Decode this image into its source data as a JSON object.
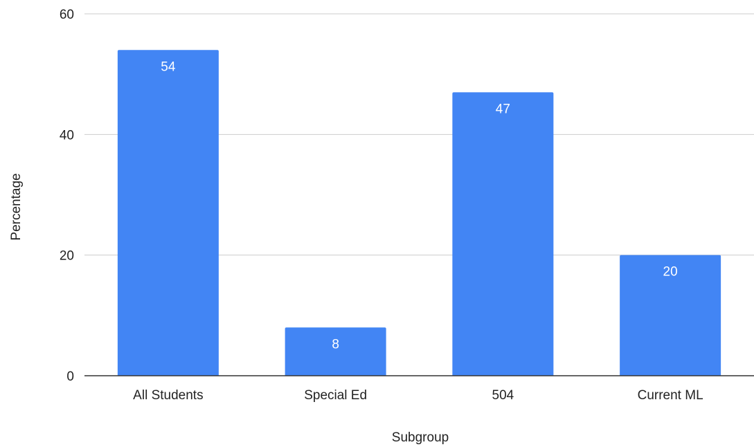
{
  "chart_data": {
    "type": "bar",
    "title": "",
    "xlabel": "Subgroup",
    "ylabel": "Percentage",
    "categories": [
      "All Students",
      "Special Ed",
      "504",
      "Current ML"
    ],
    "values": [
      54,
      8,
      47,
      20
    ],
    "data_labels": [
      "54",
      "8",
      "47",
      "20"
    ],
    "ylim": [
      0,
      60
    ],
    "yticks": [
      0,
      20,
      40,
      60
    ],
    "grid": true,
    "legend": "none",
    "bar_color": "#4285f4"
  }
}
